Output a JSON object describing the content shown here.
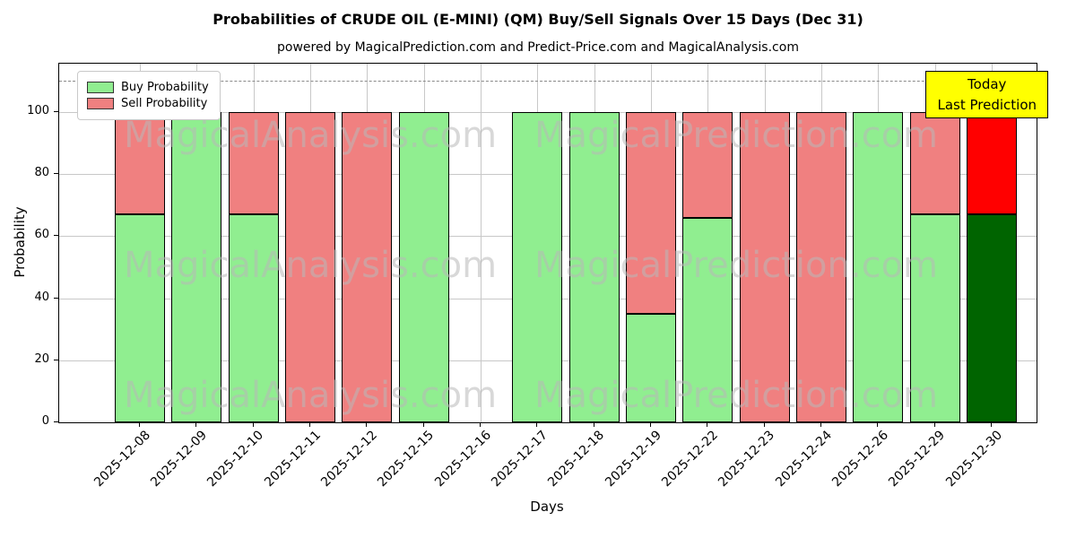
{
  "title": "Probabilities of CRUDE OIL (E-MINI) (QM) Buy/Sell Signals Over 15 Days (Dec 31)",
  "subtitle": "powered by MagicalPrediction.com and Predict-Price.com and MagicalAnalysis.com",
  "legend": {
    "buy": "Buy Probability",
    "sell": "Sell Probability"
  },
  "today_box": {
    "line1": "Today",
    "line2": "Last Prediction",
    "bg": "#ffff00"
  },
  "axes": {
    "xlabel": "Days",
    "ylabel": "Probability",
    "yticks": [
      0,
      20,
      40,
      60,
      80,
      100
    ],
    "ylim": [
      0,
      115.6
    ],
    "dashed_line_y": 110,
    "grid": true
  },
  "watermarks": {
    "left": "MagicalAnalysis.com",
    "right": "MagicalPrediction.com"
  },
  "colors": {
    "buy": "#90EE90",
    "sell": "#F08080",
    "today_buy": "#006400",
    "today_sell": "#FF0000",
    "grid": "#c8c8c8",
    "dashed": "#8a8a8a",
    "today_box_bg": "#ffff00"
  },
  "chart_data": {
    "type": "bar",
    "stacked": true,
    "title": "Probabilities of CRUDE OIL (E-MINI) (QM) Buy/Sell Signals Over 15 Days (Dec 31)",
    "xlabel": "Days",
    "ylabel": "Probability",
    "ylim": [
      0,
      115.6
    ],
    "legend_position": "upper left",
    "categories": [
      "2025-12-08",
      "2025-12-09",
      "2025-12-10",
      "2025-12-11",
      "2025-12-12",
      "2025-12-15",
      "2025-12-16",
      "2025-12-17",
      "2025-12-18",
      "2025-12-19",
      "2025-12-22",
      "2025-12-23",
      "2025-12-24",
      "2025-12-26",
      "2025-12-29",
      "2025-12-30"
    ],
    "series": [
      {
        "name": "Buy Probability",
        "color": "#90EE90",
        "values": [
          67,
          100,
          67,
          0,
          0,
          100,
          0,
          100,
          100,
          35,
          66,
          0,
          0,
          100,
          67,
          67
        ]
      },
      {
        "name": "Sell Probability",
        "color": "#F08080",
        "values": [
          33,
          0,
          33,
          100,
          100,
          0,
          0,
          0,
          0,
          65,
          34,
          100,
          100,
          0,
          33,
          33
        ]
      }
    ],
    "last_bar_colors": {
      "buy": "#006400",
      "sell": "#FF0000"
    },
    "annotations": [
      {
        "text": "Today Last Prediction",
        "target": "2025-12-30"
      }
    ]
  }
}
